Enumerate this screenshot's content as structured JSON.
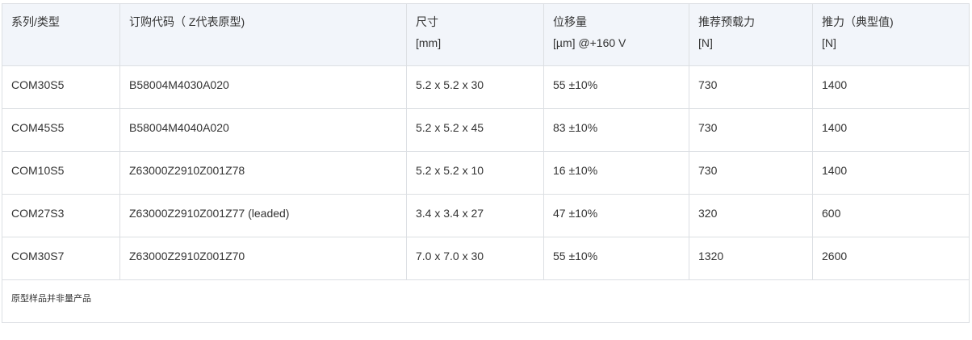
{
  "headers": [
    {
      "l1": "系列/类型",
      "l2": ""
    },
    {
      "l1": "订购代码（ Z代表原型)",
      "l2": ""
    },
    {
      "l1": "尺寸",
      "l2": "[mm]"
    },
    {
      "l1": "位移量",
      "l2": "[µm] @+160 V"
    },
    {
      "l1": "推荐预载力",
      "l2": "[N]"
    },
    {
      "l1": "推力（典型值)",
      "l2": "[N]"
    }
  ],
  "rows": [
    [
      "COM30S5",
      "B58004M4030A020",
      "5.2 x 5.2 x 30",
      "55 ±10%",
      "730",
      "1400"
    ],
    [
      "COM45S5",
      "B58004M4040A020",
      "5.2 x 5.2 x 45",
      "83 ±10%",
      "730",
      "1400"
    ],
    [
      "COM10S5",
      "Z63000Z2910Z001Z78",
      "5.2 x 5.2 x 10",
      "16 ±10%",
      "730",
      "1400"
    ],
    [
      "COM27S3",
      "Z63000Z2910Z001Z77 (leaded)",
      "3.4 x 3.4 x 27",
      "47 ±10%",
      "320",
      "600"
    ],
    [
      "COM30S7",
      "Z63000Z2910Z001Z70",
      "7.0 x 7.0 x 30",
      "55 ±10%",
      "1320",
      "2600"
    ]
  ],
  "footnote": "原型样品并非量产品"
}
